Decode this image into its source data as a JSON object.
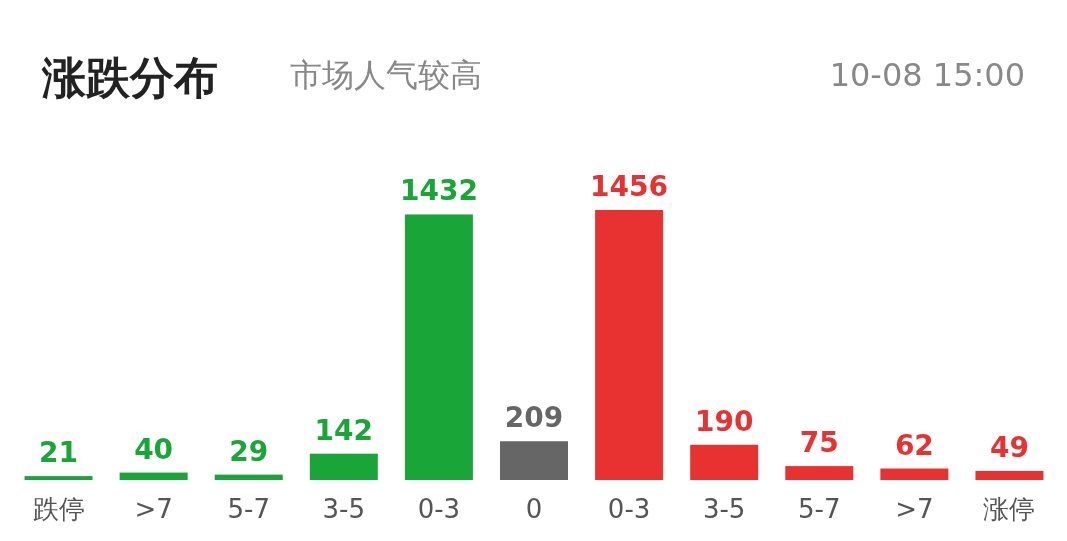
{
  "chart_data": {
    "type": "bar",
    "title": "涨跌分布",
    "subtitle": "市场人气较高",
    "annotations": [
      "10-08 15:00"
    ],
    "categories": [
      "跌停",
      ">7",
      "5-7",
      "3-5",
      "0-3",
      "0",
      "0-3",
      "3-5",
      "5-7",
      ">7",
      "涨停"
    ],
    "values": [
      21,
      40,
      29,
      142,
      1432,
      209,
      1456,
      190,
      75,
      62,
      49
    ],
    "colors": [
      "#1aa538",
      "#1aa538",
      "#1aa538",
      "#1aa538",
      "#1aa538",
      "#666666",
      "#e83232",
      "#e83232",
      "#e83232",
      "#e83232",
      "#e83232"
    ],
    "data_labels": true
  }
}
